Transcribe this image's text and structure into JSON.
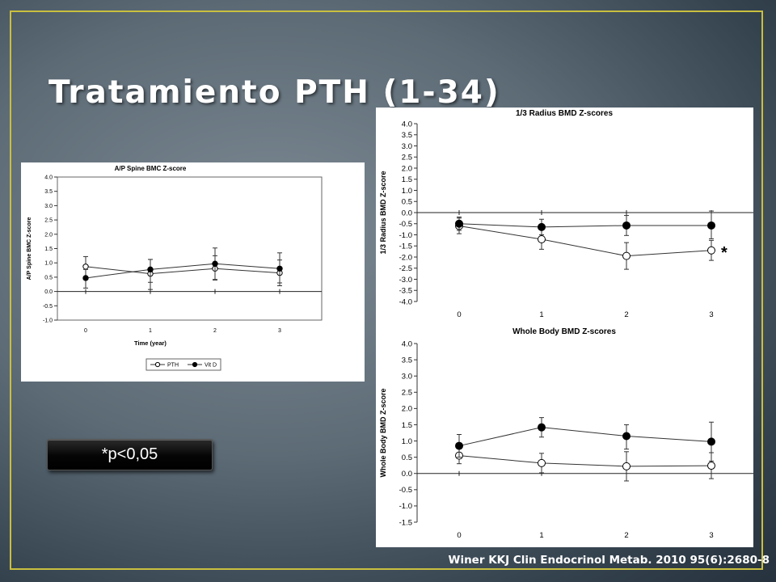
{
  "slide": {
    "title": "Tratamiento PTH (1-34)",
    "pvalue_label": "*p<0,05",
    "citation": "Winer KKJ Clin Endocrinol Metab. 2010 95(6):2680-8",
    "frame_color": "#c9bf3f"
  },
  "chart_data": [
    {
      "id": "spine",
      "type": "line",
      "title": "A/P Spine BMC Z-score",
      "xlabel": "Time (year)",
      "ylabel": "A/P Spine BMC Z-score",
      "x": [
        0,
        1,
        2,
        3
      ],
      "ylim": [
        -1.0,
        4.0
      ],
      "ytick_step": 0.5,
      "ytick_decimals": 1,
      "grid": false,
      "legend": "bottom-right",
      "series": [
        {
          "name": "PTH",
          "marker": "open-circle",
          "values": [
            0.87,
            0.62,
            0.8,
            0.65
          ],
          "err_low": [
            0.35,
            0.55,
            0.4,
            0.45
          ],
          "err_high": [
            0.35,
            0.5,
            0.45,
            0.45
          ]
        },
        {
          "name": "Vit D",
          "marker": "filled-circle",
          "values": [
            0.47,
            0.77,
            0.97,
            0.8
          ],
          "err_low": [
            0.35,
            0.45,
            0.55,
            0.5
          ],
          "err_high": [
            0.3,
            0.35,
            0.55,
            0.55
          ]
        }
      ]
    },
    {
      "id": "radius",
      "type": "line",
      "title": "1/3 Radius BMD Z-scores",
      "xlabel": "",
      "ylabel": "1/3 Radius BMD Z-score",
      "x": [
        0,
        1,
        2,
        3
      ],
      "ylim": [
        -4.0,
        4.0
      ],
      "ytick_step": 0.5,
      "ytick_decimals": 1,
      "grid": false,
      "annotations": [
        {
          "text": "*",
          "x": 3,
          "y": -1.7
        }
      ],
      "series": [
        {
          "name": "",
          "marker": "open-circle",
          "values": [
            -0.6,
            -1.2,
            -1.95,
            -1.7
          ],
          "err_low": [
            0.35,
            0.45,
            0.6,
            0.45
          ],
          "err_high": [
            0.35,
            0.45,
            0.6,
            0.45
          ]
        },
        {
          "name": "",
          "marker": "filled-circle",
          "values": [
            -0.5,
            -0.65,
            -0.58,
            -0.58
          ],
          "err_low": [
            0.3,
            0.35,
            0.45,
            0.6
          ],
          "err_high": [
            0.3,
            0.35,
            0.45,
            0.65
          ]
        }
      ]
    },
    {
      "id": "whole",
      "type": "line",
      "title": "Whole Body BMD Z-scores",
      "xlabel": "",
      "ylabel": "Whole Body BMD Z-score",
      "x": [
        0,
        1,
        2,
        3
      ],
      "ylim": [
        -1.5,
        4.0
      ],
      "ytick_step": 0.5,
      "ytick_decimals": 1,
      "grid": false,
      "series": [
        {
          "name": "",
          "marker": "open-circle",
          "values": [
            0.55,
            0.32,
            0.22,
            0.24
          ],
          "err_low": [
            0.25,
            0.3,
            0.45,
            0.4
          ],
          "err_high": [
            0.25,
            0.3,
            0.45,
            0.4
          ]
        },
        {
          "name": "",
          "marker": "filled-circle",
          "values": [
            0.85,
            1.42,
            1.15,
            0.98
          ],
          "err_low": [
            0.35,
            0.3,
            0.4,
            0.6
          ],
          "err_high": [
            0.35,
            0.3,
            0.35,
            0.6
          ]
        }
      ]
    }
  ]
}
